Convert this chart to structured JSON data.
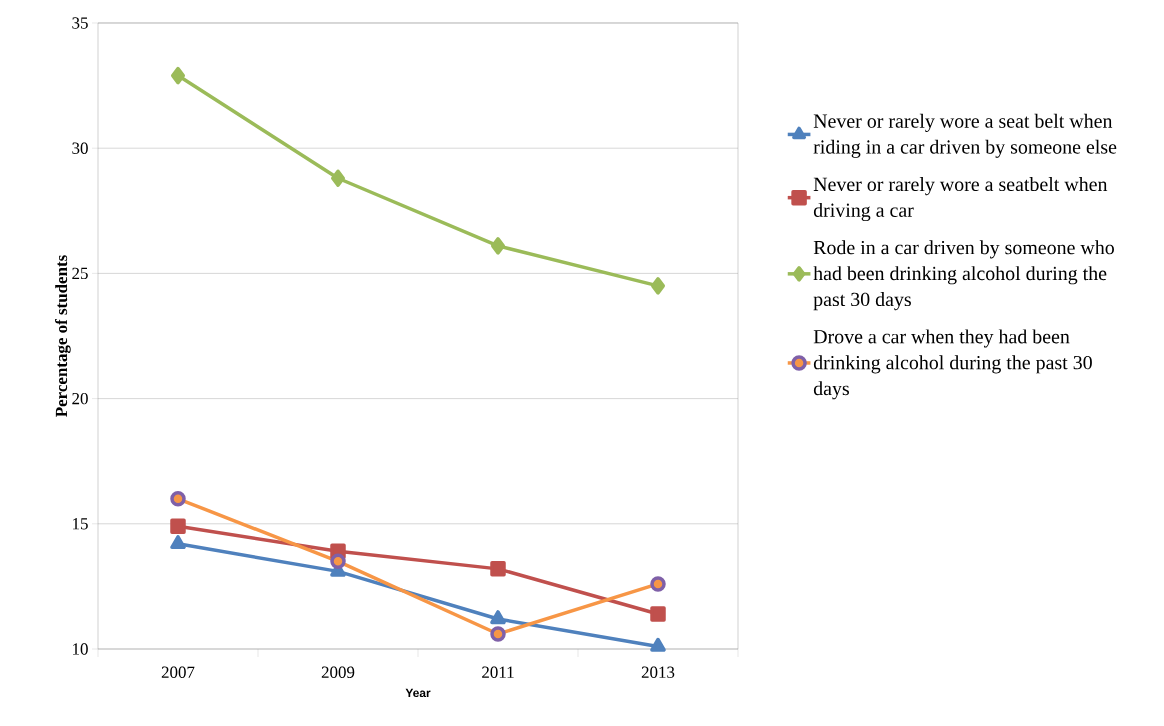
{
  "chart_data": {
    "type": "line",
    "xlabel": "Year",
    "ylabel": "Percentage of students",
    "categories": [
      "2007",
      "2009",
      "2011",
      "2013"
    ],
    "series": [
      {
        "name": "Never or rarely wore a seat belt when riding in a car driven by someone else",
        "color": "#4f81bd",
        "marker": "triangle",
        "values": [
          14.2,
          13.1,
          11.2,
          10.1
        ]
      },
      {
        "name": "Never or rarely wore a seatbelt when driving a car",
        "color": "#c0504d",
        "marker": "square",
        "values": [
          14.9,
          13.9,
          13.2,
          11.4
        ]
      },
      {
        "name": "Rode in a car driven by someone who had been drinking alcohol during the past 30 days",
        "color": "#9bbb59",
        "marker": "diamond",
        "values": [
          32.9,
          28.8,
          26.1,
          24.5
        ]
      },
      {
        "name": "Drove a car when they had been drinking alcohol during the past 30 days",
        "color": "#f79646",
        "marker": "circle",
        "values": [
          16.0,
          13.5,
          10.6,
          12.6
        ]
      }
    ],
    "ylim": [
      10,
      35
    ],
    "yticks": [
      10,
      15,
      20,
      25,
      30,
      35
    ],
    "grid": "y",
    "legend": "right"
  }
}
